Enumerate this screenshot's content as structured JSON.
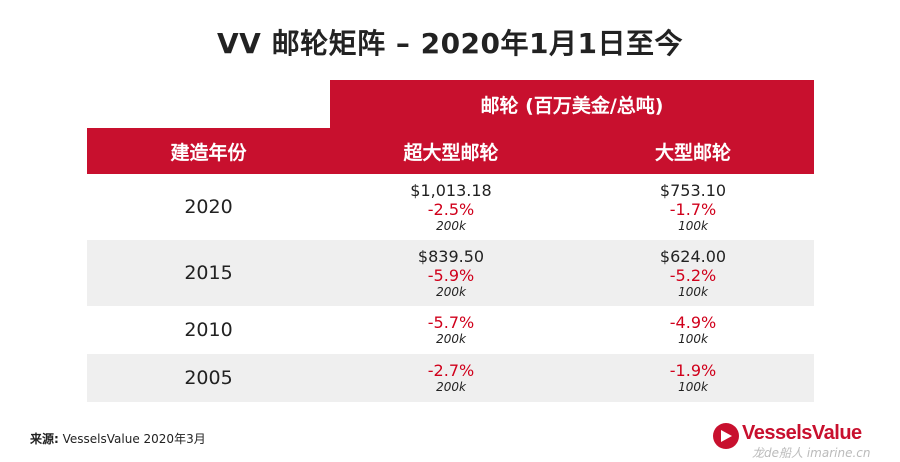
{
  "title": "VV 邮轮矩阵 – 2020年1月1日至今",
  "header": {
    "span_label": "邮轮 (百万美金/总吨)",
    "col_year": "建造年份",
    "col_ultra": "超大型邮轮",
    "col_large": "大型邮轮"
  },
  "rows": [
    {
      "year": "2020",
      "ultra": {
        "price": "$1,013.18",
        "change": "-2.5%",
        "size": "200k"
      },
      "large": {
        "price": "$753.10",
        "change": "-1.7%",
        "size": "100k"
      }
    },
    {
      "year": "2015",
      "ultra": {
        "price": "$839.50",
        "change": "-5.9%",
        "size": "200k"
      },
      "large": {
        "price": "$624.00",
        "change": "-5.2%",
        "size": "100k"
      }
    },
    {
      "year": "2010",
      "ultra": {
        "change": "-5.7%",
        "size": "200k"
      },
      "large": {
        "change": "-4.9%",
        "size": "100k"
      }
    },
    {
      "year": "2005",
      "ultra": {
        "change": "-2.7%",
        "size": "200k"
      },
      "large": {
        "change": "-1.9%",
        "size": "100k"
      }
    }
  ],
  "source": {
    "label": "来源:",
    "text": " VesselsValue 2020年3月"
  },
  "brand": {
    "name": "VesselsValue",
    "watermark": "龙de船人 imarine.cn"
  },
  "colors": {
    "accent": "#c8102e",
    "negative": "#d0001b",
    "alt_row": "#efefef"
  }
}
